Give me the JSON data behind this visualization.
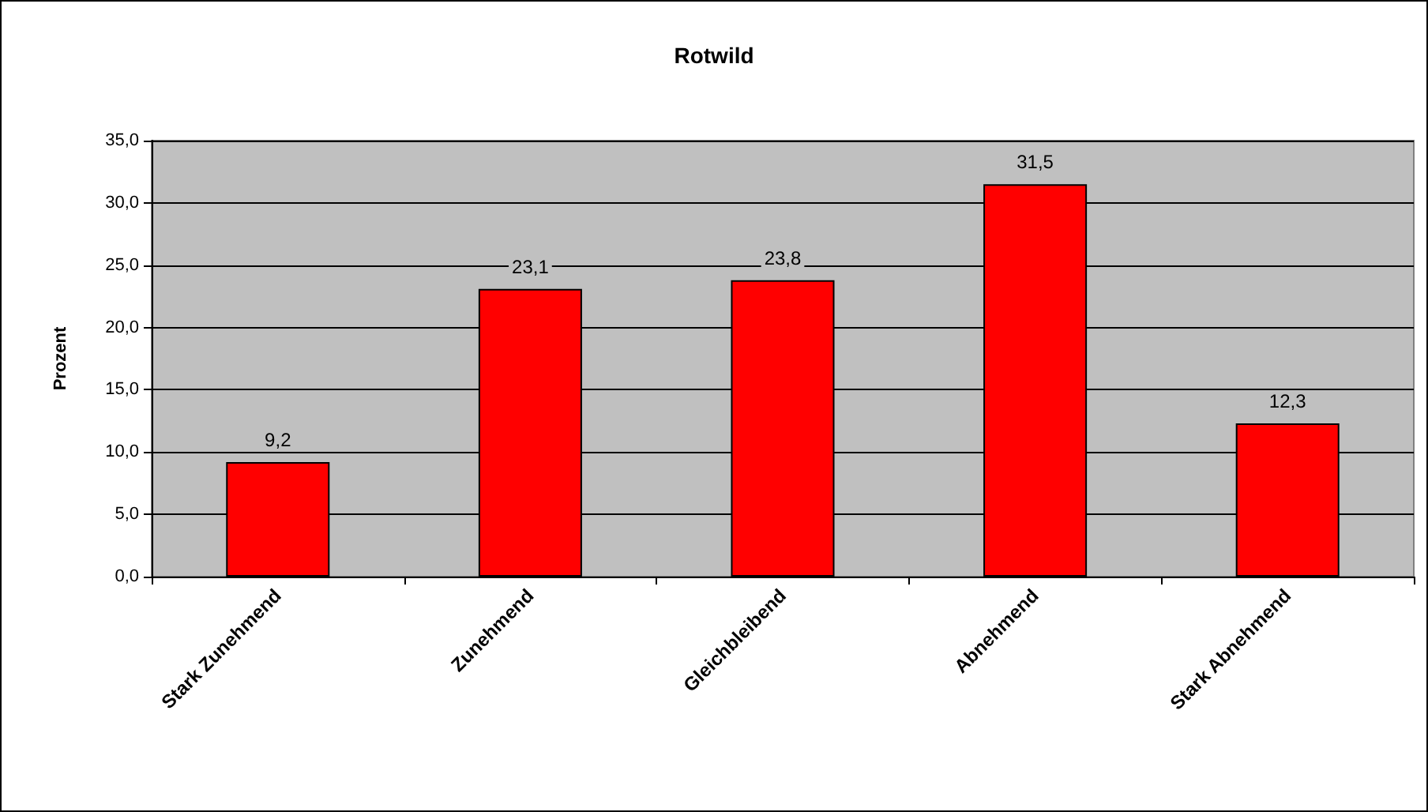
{
  "chart_data": {
    "type": "bar",
    "title": "Rotwild",
    "ylabel": "Prozent",
    "categories": [
      "Stark Zunehmend",
      "Zunehmend",
      "Gleichbleibend",
      "Abnehmend",
      "Stark Abnehmend"
    ],
    "values": [
      9.2,
      23.1,
      23.8,
      31.5,
      12.3
    ],
    "value_labels": [
      "9,2",
      "23,1",
      "23,8",
      "31,5",
      "12,3"
    ],
    "color": "#ff0000",
    "ylim": [
      0,
      35
    ],
    "yticks": [
      {
        "value": 0,
        "label": "0,0"
      },
      {
        "value": 5,
        "label": "5,0"
      },
      {
        "value": 10,
        "label": "10,0"
      },
      {
        "value": 15,
        "label": "15,0"
      },
      {
        "value": 20,
        "label": "20,0"
      },
      {
        "value": 25,
        "label": "25,0"
      },
      {
        "value": 30,
        "label": "30,0"
      },
      {
        "value": 35,
        "label": "35,0"
      }
    ],
    "grid": "y"
  }
}
